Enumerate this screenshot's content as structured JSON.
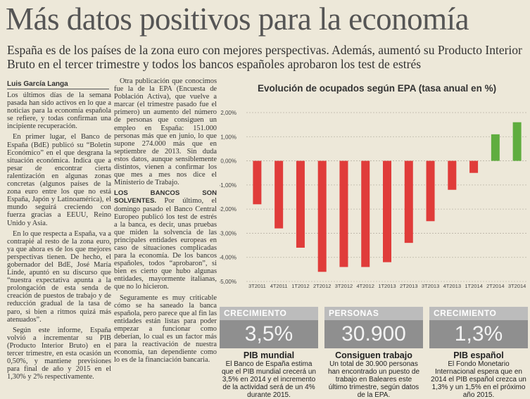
{
  "article": {
    "headline": "Más datos positivos para la economía",
    "subhead": "España es de los países de la zona euro con mejores perspectivas. Además, aumentó su Producto Interior Bruto en el tercer trimestre y todos los bancos españoles aprobaron los test de estrés",
    "byline": "Luis García Langa",
    "col1": [
      "Los últimos días de la semana pasada han sido activos en lo que a noticias para la economía española se refiere, y todas confirman una incipiente recuperación.",
      "En primer lugar, el Banco de España (BdE) publicó su “Boletín Económico” en el que desgrana la situación económica. Indica que a pesar de encontrar cierta ralentización en algunas zonas concretas (algunos países de la zona euro entre los que no está España, Japón y Latinoamérica), el mundo seguirá creciendo con fuerza gracias a EEUU, Reino Unido y Asia.",
      "En lo que respecta a España, va a contrapié al resto de la zona euro, ya que ahora es de los que mejores perspectivas tienen. De hecho, el gobernador del BdE, José María Linde, apuntó en su discurso que “nuestra expectativa apunta a la prolongación de esta senda de creación de puestos de trabajo y de reducción gradual de la tasa de paro, si bien a ritmos quizá más atenuados”.",
      "Según este informe, España volvió a incrementar su PIB (Producto Interior Bruto) en el tercer trimestre, en esta ocasión un 0,50%, y mantiene previsiones para final de año y 2015 en el 1,30% y 2% respectivamente."
    ],
    "col2_p1": "Otra publicación que conocimos fue la de la EPA (Encuesta de Población Activa), que vuelve a marcar (el trimestre pasado fue el primero) un aumento del número de personas que consiguen un empleo en España: 151.000 personas más que en junio, lo que supone 274.000 más que en septiembre de 2013. Sin duda estos datos, aunque sensiblemente distintos, vienen a confirmar los que mes a mes nos dice el Ministerio de Trabajo.",
    "col2_lead": "LOS BANCOS SON SOLVENTES.",
    "col2_p2": " Por último, el domingo pasado el Banco Central Europeo publicó los test de estrés a la banca, es decir, unas pruebas que miden la solvencia de las principales entidades europeas en caso de situaciones complicadas para la economía. De los bancos españoles, todos “aprobaron”, si bien es cierto que hubo algunas entidades, mayormente italianas, que no lo hicieron.",
    "col2_p3": "Seguramente es muy criticable cómo se ha saneado la banca española, pero parece que al fin las entidades están listas para poder empezar a funcionar como deberían, lo cual es un factor más para la reactivación de nuestra economía, tan dependiente como lo es de la financiación bancaria."
  },
  "chart_data": {
    "type": "bar",
    "title": "Evolución de ocupados según EPA (tasa anual en %)",
    "categories": [
      "3T2011",
      "4T2011",
      "1T2012",
      "2T2012",
      "3T2012",
      "4T2012",
      "1T2013",
      "2T2013",
      "3T2013",
      "4T2013",
      "1T2014",
      "2T2014",
      "3T2014"
    ],
    "values": [
      -1.8,
      -2.8,
      -3.6,
      -4.6,
      -4.4,
      -4.4,
      -4.2,
      -3.4,
      -2.5,
      -1.2,
      -0.5,
      1.1,
      1.6
    ],
    "yticks": [
      "2,00%",
      "1,00%",
      "0,00%",
      "-1,00%",
      "-2,00%",
      "-3,00%",
      "-4,00%",
      "-5,00%"
    ],
    "ylim": [
      -5,
      2
    ],
    "grid": true,
    "colors": {
      "negative": "#e03c3a",
      "positive": "#5fad3f"
    }
  },
  "infoboxes": [
    {
      "header": "CRECIMIENTO",
      "value": "3,5%",
      "title": "PIB mundial",
      "text": "El Banco de España estima que el PIB mundial crecerá un 3,5% en 2014 y el incremento de la actividad será de un 4% durante 2015."
    },
    {
      "header": "PERSONAS",
      "value": "30.900",
      "title": "Consiguen trabajo",
      "text": "Un total de 30.900 personas han encontrado un puesto de trabajo en Baleares este último trimestre, según datos de la EPA."
    },
    {
      "header": "CRECIMIENTO",
      "value": "1,3%",
      "title": "PIB español",
      "text": "El Fondo Monetario Internacional espera que en 2014 el PIB español crezca un 1,3% y un 1,5% en el próximo año 2015."
    }
  ]
}
